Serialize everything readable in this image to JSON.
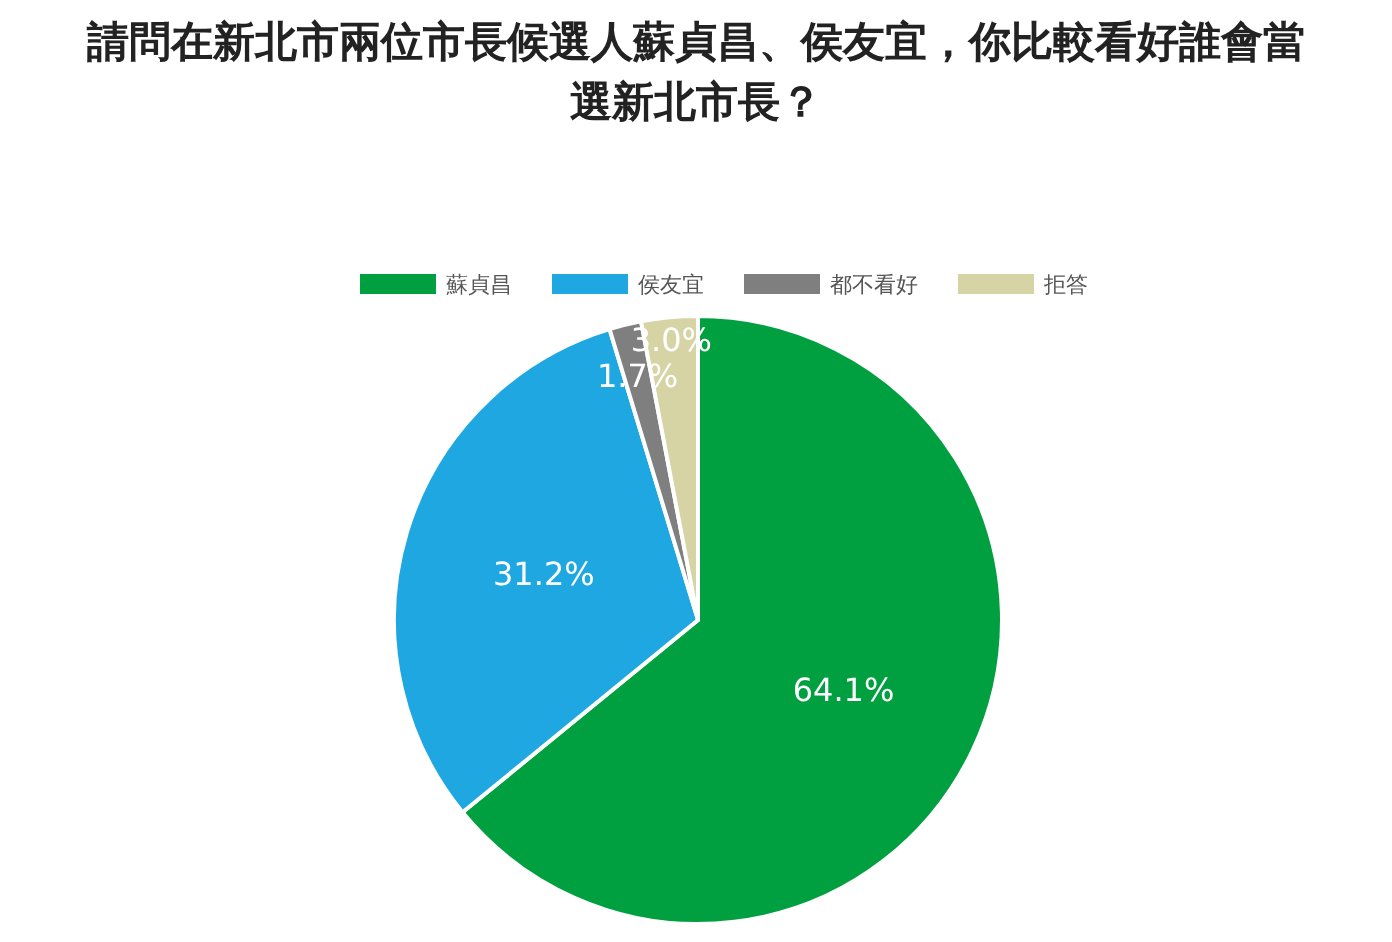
{
  "chart_data": {
    "type": "pie",
    "title": "請問在新北市兩位市長候選人蘇貞昌、侯友宜，你比較看好誰會當選新北市長？",
    "categories": [
      "蘇貞昌",
      "侯友宜",
      "都不看好",
      "拒答"
    ],
    "values": [
      64.1,
      31.2,
      1.7,
      3.0
    ],
    "colors": [
      "#00a040",
      "#1ea7e1",
      "#7f7f7f",
      "#d6d3a5"
    ],
    "value_labels": [
      "64.1%",
      "31.2%",
      "1.7%",
      "3.0%"
    ],
    "legend": "top"
  }
}
